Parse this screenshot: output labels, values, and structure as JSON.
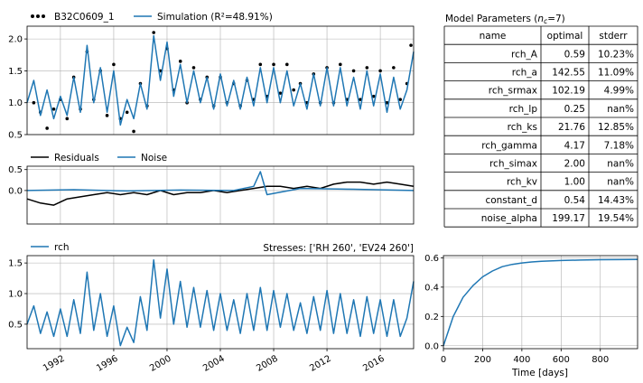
{
  "colors": {
    "observed": "#000000",
    "simulation": "#1f77b4",
    "residuals": "#000000",
    "noise": "#1f77b4",
    "rch": "#1f77b4",
    "response": "#1f77b4",
    "grid": "#b0b0b0"
  },
  "chart_data": [
    {
      "id": "fit",
      "type": "line",
      "legend": [
        "B32C0609_1",
        "Simulation (R²=48.91%)"
      ],
      "legend_placement": "top-left (above axes)",
      "xlim": [
        1989.5,
        2018.5
      ],
      "ylim": [
        0.5,
        2.2
      ],
      "yticks": [
        "0.5",
        "1.0",
        "1.5",
        "2.0"
      ],
      "grid": true,
      "series": [
        {
          "name": "B32C0609_1",
          "style": "points",
          "x": [
            1990.0,
            1990.5,
            1991.0,
            1991.5,
            1992.0,
            1992.5,
            1993.0,
            1993.5,
            1994.0,
            1994.5,
            1995.0,
            1995.5,
            1996.0,
            1996.5,
            1997.0,
            1997.5,
            1998.0,
            1998.5,
            1999.0,
            1999.5,
            2000.0,
            2000.5,
            2001.0,
            2001.5,
            2002.0,
            2002.5,
            2003.0,
            2003.5,
            2004.0,
            2004.5,
            2005.0,
            2005.5,
            2006.0,
            2006.5,
            2007.0,
            2007.5,
            2008.0,
            2008.5,
            2009.0,
            2009.5,
            2010.0,
            2010.5,
            2011.0,
            2011.5,
            2012.0,
            2012.5,
            2013.0,
            2013.5,
            2014.0,
            2014.5,
            2015.0,
            2015.5,
            2016.0,
            2016.5,
            2017.0,
            2017.5,
            2018.0,
            2018.3
          ],
          "values": [
            1.0,
            0.85,
            0.6,
            0.9,
            1.05,
            0.75,
            1.4,
            0.9,
            1.8,
            1.05,
            1.5,
            0.8,
            1.6,
            0.75,
            0.85,
            0.55,
            1.3,
            0.95,
            2.1,
            1.5,
            1.85,
            1.2,
            1.65,
            1.0,
            1.55,
            1.05,
            1.4,
            0.95,
            1.4,
            1.0,
            1.3,
            0.95,
            1.35,
            1.05,
            1.6,
            1.1,
            1.6,
            1.15,
            1.6,
            1.2,
            1.3,
            1.0,
            1.45,
            1.0,
            1.55,
            1.0,
            1.6,
            1.05,
            1.5,
            1.05,
            1.55,
            1.1,
            1.5,
            1.0,
            1.55,
            1.05,
            1.3,
            1.9
          ]
        },
        {
          "name": "Simulation (R²=48.91%)",
          "style": "line",
          "x": [
            1989.5,
            1990.0,
            1990.5,
            1991.0,
            1991.5,
            1992.0,
            1992.5,
            1993.0,
            1993.5,
            1994.0,
            1994.5,
            1995.0,
            1995.5,
            1996.0,
            1996.5,
            1997.0,
            1997.5,
            1998.0,
            1998.5,
            1999.0,
            1999.5,
            2000.0,
            2000.5,
            2001.0,
            2001.5,
            2002.0,
            2002.5,
            2003.0,
            2003.5,
            2004.0,
            2004.5,
            2005.0,
            2005.5,
            2006.0,
            2006.5,
            2007.0,
            2007.5,
            2008.0,
            2008.5,
            2009.0,
            2009.5,
            2010.0,
            2010.5,
            2011.0,
            2011.5,
            2012.0,
            2012.5,
            2013.0,
            2013.5,
            2014.0,
            2014.5,
            2015.0,
            2015.5,
            2016.0,
            2016.5,
            2017.0,
            2017.5,
            2018.0,
            2018.5
          ],
          "values": [
            1.0,
            1.35,
            0.8,
            1.2,
            0.75,
            1.1,
            0.8,
            1.4,
            0.85,
            1.9,
            1.0,
            1.55,
            0.85,
            1.5,
            0.65,
            1.05,
            0.75,
            1.3,
            0.9,
            2.05,
            1.35,
            1.95,
            1.1,
            1.6,
            1.0,
            1.5,
            1.0,
            1.4,
            0.9,
            1.45,
            0.95,
            1.35,
            0.9,
            1.4,
            0.95,
            1.55,
            1.0,
            1.55,
            1.0,
            1.5,
            0.95,
            1.3,
            0.9,
            1.45,
            0.95,
            1.55,
            0.95,
            1.55,
            0.95,
            1.4,
            0.9,
            1.5,
            0.95,
            1.45,
            0.85,
            1.4,
            0.9,
            1.2,
            1.8
          ]
        }
      ]
    },
    {
      "id": "residuals",
      "type": "line",
      "legend": [
        "Residuals",
        "Noise"
      ],
      "legend_placement": "top-left (above axes)",
      "xlim": [
        1989.5,
        2018.5
      ],
      "ylim": [
        -0.8,
        0.58
      ],
      "yticks": [
        "0.0",
        "0.5"
      ],
      "grid": true,
      "series": [
        {
          "name": "Residuals",
          "x": [
            1989.5,
            1990.5,
            1991.5,
            1992.5,
            1993.5,
            1994.5,
            1995.5,
            1996.5,
            1997.5,
            1998.5,
            1999.5,
            2000.5,
            2001.5,
            2002.5,
            2003.5,
            2004.5,
            2005.5,
            2006.5,
            2007.5,
            2008.5,
            2009.5,
            2010.5,
            2011.5,
            2012.5,
            2013.5,
            2014.5,
            2015.5,
            2016.5,
            2017.5,
            2018.5
          ],
          "values": [
            -0.2,
            -0.3,
            -0.35,
            -0.2,
            -0.15,
            -0.1,
            -0.05,
            -0.1,
            -0.05,
            -0.1,
            0.0,
            -0.1,
            -0.05,
            -0.05,
            0.0,
            -0.05,
            0.0,
            0.05,
            0.1,
            0.1,
            0.05,
            0.1,
            0.05,
            0.15,
            0.2,
            0.2,
            0.15,
            0.2,
            0.15,
            0.1
          ]
        },
        {
          "name": "Noise",
          "x": [
            1989.5,
            1993.0,
            1997.0,
            2001.0,
            2005.0,
            2006.5,
            2007.0,
            2007.5,
            2010.0,
            2014.0,
            2018.5
          ],
          "values": [
            0.0,
            0.02,
            -0.01,
            0.01,
            0.0,
            0.1,
            0.45,
            -0.1,
            0.05,
            0.03,
            0.0
          ]
        }
      ]
    },
    {
      "id": "stresses",
      "type": "line",
      "legend": [
        "rch"
      ],
      "legend_placement": "top-left (above axes)",
      "title": "Stresses: ['RH 260', 'EV24 260']",
      "xlim": [
        1989.5,
        2018.5
      ],
      "ylim": [
        0.1,
        1.62
      ],
      "yticks": [
        "0.5",
        "1.0",
        "1.5"
      ],
      "xticks": [
        "1992",
        "1996",
        "2000",
        "2004",
        "2008",
        "2012",
        "2016"
      ],
      "grid": true,
      "series": [
        {
          "name": "rch",
          "x": [
            1989.5,
            1990.0,
            1990.5,
            1991.0,
            1991.5,
            1992.0,
            1992.5,
            1993.0,
            1993.5,
            1994.0,
            1994.5,
            1995.0,
            1995.5,
            1996.0,
            1996.5,
            1997.0,
            1997.5,
            1998.0,
            1998.5,
            1999.0,
            1999.5,
            2000.0,
            2000.5,
            2001.0,
            2001.5,
            2002.0,
            2002.5,
            2003.0,
            2003.5,
            2004.0,
            2004.5,
            2005.0,
            2005.5,
            2006.0,
            2006.5,
            2007.0,
            2007.5,
            2008.0,
            2008.5,
            2009.0,
            2009.5,
            2010.0,
            2010.5,
            2011.0,
            2011.5,
            2012.0,
            2012.5,
            2013.0,
            2013.5,
            2014.0,
            2014.5,
            2015.0,
            2015.5,
            2016.0,
            2016.5,
            2017.0,
            2017.5,
            2018.0,
            2018.5
          ],
          "values": [
            0.5,
            0.8,
            0.35,
            0.7,
            0.3,
            0.75,
            0.3,
            0.9,
            0.35,
            1.35,
            0.4,
            1.0,
            0.3,
            0.8,
            0.15,
            0.45,
            0.2,
            0.95,
            0.4,
            1.55,
            0.6,
            1.4,
            0.5,
            1.2,
            0.45,
            1.1,
            0.45,
            1.05,
            0.4,
            1.0,
            0.4,
            0.9,
            0.35,
            1.0,
            0.4,
            1.1,
            0.4,
            1.05,
            0.45,
            1.0,
            0.4,
            0.85,
            0.35,
            0.95,
            0.4,
            1.05,
            0.35,
            1.0,
            0.35,
            0.9,
            0.3,
            0.95,
            0.35,
            0.9,
            0.3,
            0.9,
            0.3,
            0.6,
            1.2
          ]
        }
      ]
    },
    {
      "id": "response",
      "type": "line",
      "xlabel": "Time [days]",
      "xlim": [
        0,
        990
      ],
      "ylim": [
        -0.02,
        0.615
      ],
      "xticks": [
        "0",
        "200",
        "400",
        "600",
        "800"
      ],
      "yticks": [
        "0.0",
        "0.2",
        "0.4",
        "0.6"
      ],
      "grid": true,
      "series": [
        {
          "name": "response",
          "x": [
            0,
            50,
            100,
            150,
            200,
            250,
            300,
            350,
            400,
            450,
            500,
            600,
            700,
            800,
            900,
            990
          ],
          "values": [
            0.0,
            0.2,
            0.33,
            0.41,
            0.47,
            0.51,
            0.54,
            0.555,
            0.565,
            0.572,
            0.577,
            0.582,
            0.585,
            0.587,
            0.588,
            0.589
          ]
        }
      ]
    }
  ],
  "params_table": {
    "title": "Model Parameters (n_c=7)",
    "title_main": "Model Parameters (",
    "title_n": "n",
    "title_c": "c",
    "title_eq": "=7)",
    "headers": [
      "name",
      "optimal",
      "stderr"
    ],
    "rows": [
      [
        "rch_A",
        "0.59",
        "10.23%"
      ],
      [
        "rch_a",
        "142.55",
        "11.09%"
      ],
      [
        "rch_srmax",
        "102.19",
        "4.99%"
      ],
      [
        "rch_lp",
        "0.25",
        "nan%"
      ],
      [
        "rch_ks",
        "21.76",
        "12.85%"
      ],
      [
        "rch_gamma",
        "4.17",
        "7.18%"
      ],
      [
        "rch_simax",
        "2.00",
        "nan%"
      ],
      [
        "rch_kv",
        "1.00",
        "nan%"
      ],
      [
        "constant_d",
        "0.54",
        "14.43%"
      ],
      [
        "noise_alpha",
        "199.17",
        "19.54%"
      ]
    ]
  }
}
